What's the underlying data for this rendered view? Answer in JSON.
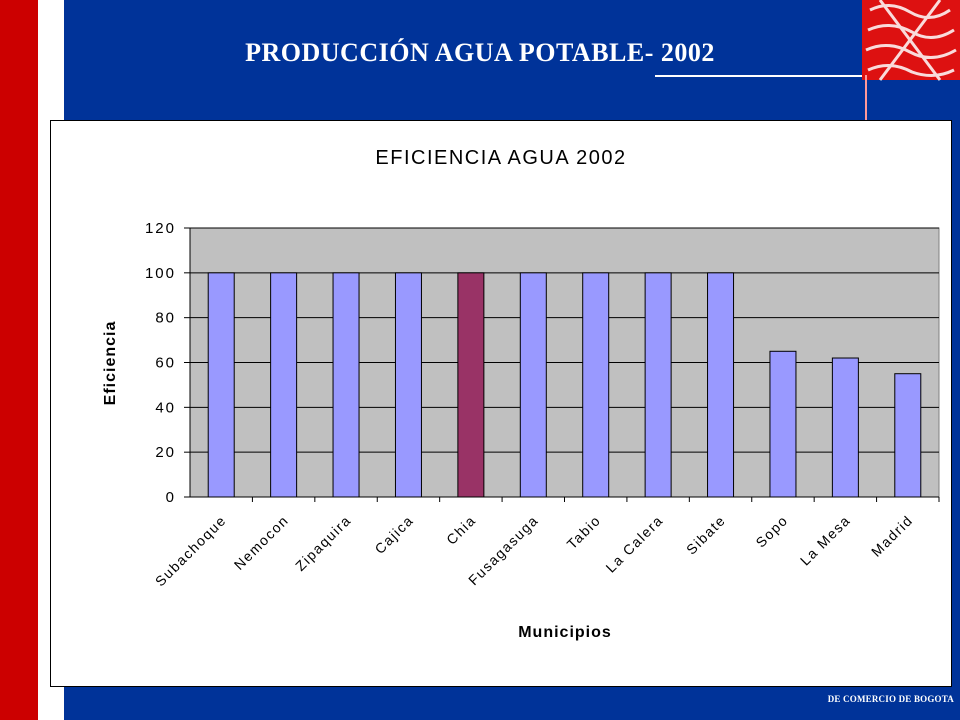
{
  "slide": {
    "title": "PRODUCCIÓN AGUA POTABLE- 2002",
    "footer": "DE COMERCIO DE BOGOTA"
  },
  "colors": {
    "background": "#003399",
    "accent_red": "#cc0000",
    "bar_default": "#9999ff",
    "bar_highlight": "#993366",
    "plot_area": "#c0c0c0"
  },
  "chart_data": {
    "type": "bar",
    "title": "EFICIENCIA AGUA 2002",
    "xlabel": "Municipios",
    "ylabel": "Eficiencia",
    "ylim": [
      0,
      120
    ],
    "yticks": [
      0,
      20,
      40,
      60,
      80,
      100,
      120
    ],
    "grid": true,
    "categories": [
      "Subachoque",
      "Nemocon",
      "Zipaquira",
      "Cajica",
      "Chia",
      "Fusagasuga",
      "Tabio",
      "La Calera",
      "Sibate",
      "Sopo",
      "La Mesa",
      "Madrid"
    ],
    "values": [
      100,
      100,
      100,
      100,
      100,
      100,
      100,
      100,
      100,
      65,
      62,
      55
    ],
    "highlight_category": "Chia"
  }
}
